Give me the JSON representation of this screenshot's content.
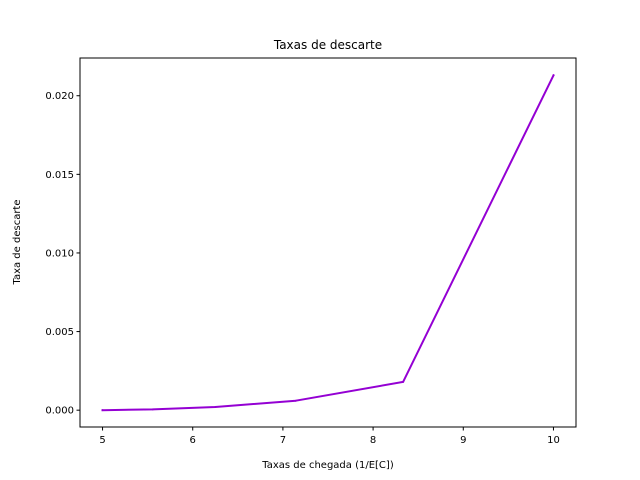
{
  "chart_data": {
    "type": "line",
    "title": "Taxas de descarte",
    "xlabel": "Taxas de chegada (1/E[C])",
    "ylabel": "Taxa de descarte",
    "xlim": [
      4.75,
      10.25
    ],
    "ylim": [
      -0.00107,
      0.0224
    ],
    "xticks": [
      5,
      6,
      7,
      8,
      9,
      10
    ],
    "xtick_labels": [
      "5",
      "6",
      "7",
      "8",
      "9",
      "10"
    ],
    "yticks": [
      0.0,
      0.005,
      0.01,
      0.015,
      0.02
    ],
    "ytick_labels": [
      "0.000",
      "0.005",
      "0.010",
      "0.015",
      "0.020"
    ],
    "grid": false,
    "series": [
      {
        "color": "#9400d3",
        "x": [
          5.0,
          5.556,
          6.25,
          7.143,
          8.333,
          10.0
        ],
        "y": [
          0.0,
          5e-05,
          0.0002,
          0.0006,
          0.0018,
          0.0213
        ]
      }
    ]
  }
}
